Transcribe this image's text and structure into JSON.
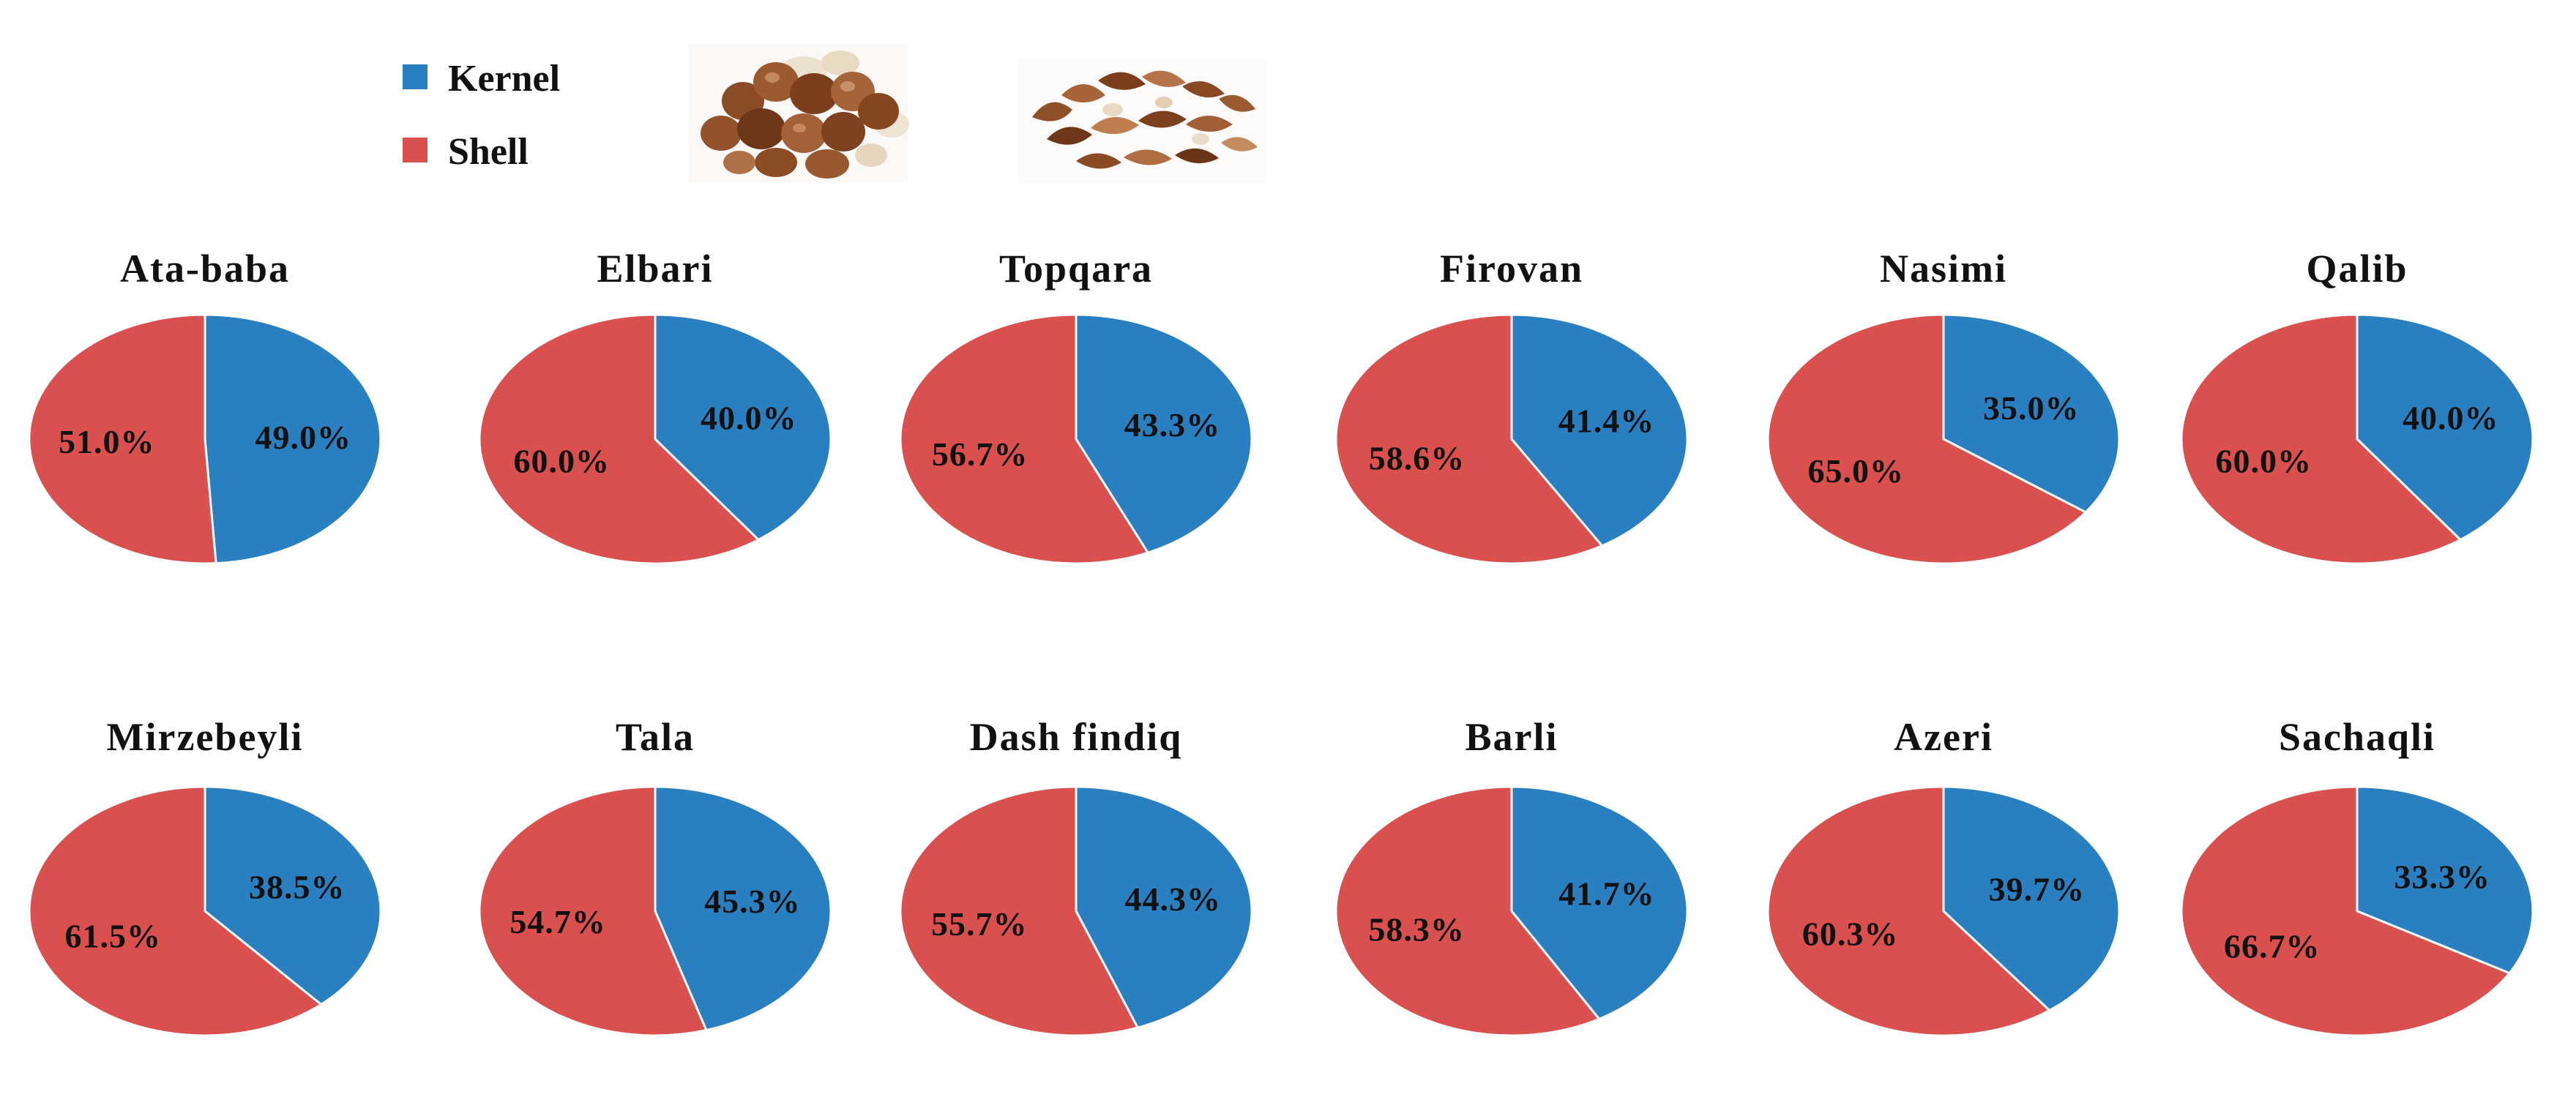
{
  "legend": {
    "items": [
      {
        "label": "Kernel",
        "color": "#2a7fc1"
      },
      {
        "label": "Shell",
        "color": "#d9504e"
      }
    ],
    "images": [
      "hazelnut-kernels-photo",
      "hazelnut-shells-photo"
    ]
  },
  "chart_data": [
    {
      "type": "pie",
      "title": "Ata-baba",
      "categories": [
        "Kernel",
        "Shell"
      ],
      "values": [
        49.0,
        51.0
      ],
      "labels": [
        "49.0%",
        "51.0%"
      ]
    },
    {
      "type": "pie",
      "title": "Elbari",
      "categories": [
        "Kernel",
        "Shell"
      ],
      "values": [
        40.0,
        60.0
      ],
      "labels": [
        "40.0%",
        "60.0%"
      ]
    },
    {
      "type": "pie",
      "title": "Topqara",
      "categories": [
        "Kernel",
        "Shell"
      ],
      "values": [
        43.3,
        56.7
      ],
      "labels": [
        "43.3%",
        "56.7%"
      ]
    },
    {
      "type": "pie",
      "title": "Firovan",
      "categories": [
        "Kernel",
        "Shell"
      ],
      "values": [
        41.4,
        58.6
      ],
      "labels": [
        "41.4%",
        "58.6%"
      ]
    },
    {
      "type": "pie",
      "title": "Nasimi",
      "categories": [
        "Kernel",
        "Shell"
      ],
      "values": [
        35.0,
        65.0
      ],
      "labels": [
        "35.0%",
        "65.0%"
      ]
    },
    {
      "type": "pie",
      "title": "Qalib",
      "categories": [
        "Kernel",
        "Shell"
      ],
      "values": [
        40.0,
        60.0
      ],
      "labels": [
        "40.0%",
        "60.0%"
      ]
    },
    {
      "type": "pie",
      "title": "Mirzebeyli",
      "categories": [
        "Kernel",
        "Shell"
      ],
      "values": [
        38.5,
        61.5
      ],
      "labels": [
        "38.5%",
        "61.5%"
      ]
    },
    {
      "type": "pie",
      "title": "Tala",
      "categories": [
        "Kernel",
        "Shell"
      ],
      "values": [
        45.3,
        54.7
      ],
      "labels": [
        "45.3%",
        "54.7%"
      ]
    },
    {
      "type": "pie",
      "title": "Dash findiq",
      "categories": [
        "Kernel",
        "Shell"
      ],
      "values": [
        44.3,
        55.7
      ],
      "labels": [
        "44.3%",
        "55.7%"
      ]
    },
    {
      "type": "pie",
      "title": "Barli",
      "categories": [
        "Kernel",
        "Shell"
      ],
      "values": [
        41.7,
        58.3
      ],
      "labels": [
        "41.7%",
        "58.3%"
      ]
    },
    {
      "type": "pie",
      "title": "Azeri",
      "categories": [
        "Kernel",
        "Shell"
      ],
      "values": [
        39.7,
        60.3
      ],
      "labels": [
        "39.7%",
        "60.3%"
      ]
    },
    {
      "type": "pie",
      "title": "Sachaqli",
      "categories": [
        "Kernel",
        "Shell"
      ],
      "values": [
        33.3,
        66.7
      ],
      "labels": [
        "33.3%",
        "66.7%"
      ]
    }
  ]
}
